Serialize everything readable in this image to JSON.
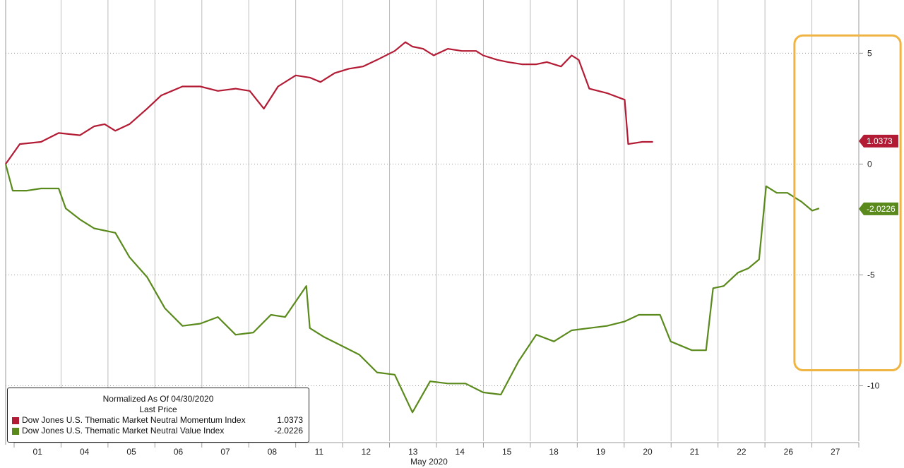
{
  "chart_data": {
    "type": "line",
    "xlabel": "May 2020",
    "x_ticks": [
      "01",
      "04",
      "05",
      "06",
      "07",
      "08",
      "11",
      "12",
      "13",
      "14",
      "15",
      "18",
      "19",
      "20",
      "21",
      "22",
      "26",
      "27"
    ],
    "y_ticks": [
      5,
      0,
      -5,
      -10
    ],
    "y_tick_labels": [
      "5",
      "0",
      "-5",
      "-10"
    ],
    "ylim": [
      -12.5,
      7.4
    ],
    "grid": true,
    "y_axis_side": "right",
    "legend": {
      "placement": "bottom-left",
      "header_line1": "Normalized As Of 04/30/2020",
      "header_line2": "Last Price"
    },
    "series": [
      {
        "name": "Dow Jones U.S. Thematic Market Neutral Momentum Index",
        "color": "#b31b35",
        "last_label": "1.0373",
        "last_value": 1.0373,
        "points": [
          [
            0,
            0
          ],
          [
            0.4,
            0.9
          ],
          [
            1,
            1
          ],
          [
            1.5,
            1.4
          ],
          [
            2.1,
            1.3
          ],
          [
            2.5,
            1.7
          ],
          [
            2.8,
            1.8
          ],
          [
            3.1,
            1.5
          ],
          [
            3.5,
            1.8
          ],
          [
            4,
            2.5
          ],
          [
            4.4,
            3.1
          ],
          [
            4.7,
            3.3
          ],
          [
            5,
            3.5
          ],
          [
            5.5,
            3.5
          ],
          [
            6,
            3.3
          ],
          [
            6.5,
            3.4
          ],
          [
            6.9,
            3.3
          ],
          [
            7.3,
            2.5
          ],
          [
            7.7,
            3.5
          ],
          [
            8.2,
            4
          ],
          [
            8.6,
            3.9
          ],
          [
            8.9,
            3.7
          ],
          [
            9.3,
            4.1
          ],
          [
            9.7,
            4.3
          ],
          [
            10.1,
            4.4
          ],
          [
            10.5,
            4.7
          ],
          [
            11,
            5.1
          ],
          [
            11.3,
            5.5
          ],
          [
            11.5,
            5.3
          ],
          [
            11.8,
            5.2
          ],
          [
            12.1,
            4.9
          ],
          [
            12.5,
            5.2
          ],
          [
            12.9,
            5.1
          ],
          [
            13.3,
            5.1
          ],
          [
            13.5,
            4.9
          ],
          [
            13.9,
            4.7
          ],
          [
            14.2,
            4.6
          ],
          [
            14.6,
            4.5
          ],
          [
            15,
            4.5
          ],
          [
            15.3,
            4.6
          ],
          [
            15.7,
            4.4
          ],
          [
            16,
            4.9
          ],
          [
            16.2,
            4.7
          ],
          [
            16.5,
            3.4
          ],
          [
            17,
            3.2
          ],
          [
            17.5,
            2.9
          ],
          [
            17.6,
            0.9
          ],
          [
            18,
            1.0
          ],
          [
            18.3,
            1.0
          ]
        ]
      },
      {
        "name": "Dow Jones U.S. Thematic Market Neutral Value Index",
        "color": "#5a8a1c",
        "last_label": "-2.0226",
        "last_value": -2.0226,
        "points": [
          [
            0,
            0
          ],
          [
            0.2,
            -1.2
          ],
          [
            0.6,
            -1.2
          ],
          [
            1,
            -1.1
          ],
          [
            1.5,
            -1.1
          ],
          [
            1.7,
            -2
          ],
          [
            2.1,
            -2.5
          ],
          [
            2.5,
            -2.9
          ],
          [
            3.1,
            -3.1
          ],
          [
            3.5,
            -4.2
          ],
          [
            4,
            -5.1
          ],
          [
            4.5,
            -6.5
          ],
          [
            5,
            -7.3
          ],
          [
            5.5,
            -7.2
          ],
          [
            6,
            -6.9
          ],
          [
            6.5,
            -7.7
          ],
          [
            7,
            -7.6
          ],
          [
            7.5,
            -6.8
          ],
          [
            7.9,
            -6.9
          ],
          [
            8.5,
            -5.5
          ],
          [
            8.6,
            -7.4
          ],
          [
            9,
            -7.8
          ],
          [
            9.5,
            -8.2
          ],
          [
            10,
            -8.6
          ],
          [
            10.5,
            -9.4
          ],
          [
            11,
            -9.5
          ],
          [
            11.5,
            -11.2
          ],
          [
            12,
            -9.8
          ],
          [
            12.5,
            -9.9
          ],
          [
            13,
            -9.9
          ],
          [
            13.5,
            -10.3
          ],
          [
            14,
            -10.4
          ],
          [
            14.5,
            -8.9
          ],
          [
            15,
            -7.7
          ],
          [
            15.5,
            -8
          ],
          [
            16,
            -7.5
          ],
          [
            16.5,
            -7.4
          ],
          [
            17,
            -7.3
          ],
          [
            17.5,
            -7.1
          ],
          [
            17.9,
            -6.8
          ],
          [
            18.5,
            -6.8
          ],
          [
            18.8,
            -8
          ],
          [
            19.4,
            -8.4
          ],
          [
            19.8,
            -8.4
          ],
          [
            20,
            -5.6
          ],
          [
            20.3,
            -5.5
          ],
          [
            20.7,
            -4.9
          ],
          [
            21,
            -4.7
          ],
          [
            21.3,
            -4.3
          ],
          [
            21.5,
            -1
          ],
          [
            21.8,
            -1.3
          ],
          [
            22.1,
            -1.3
          ],
          [
            22.5,
            -1.7
          ],
          [
            22.8,
            -2.1
          ],
          [
            23,
            -2.0
          ]
        ]
      }
    ],
    "series_last_values_printed": [
      "1.0373",
      "-2.0226"
    ],
    "highlight_box": {
      "color": "#f0b443",
      "x_start": 22.3,
      "x_end": 25.3,
      "y_top": 5.8,
      "y_bottom": -9.3
    }
  }
}
